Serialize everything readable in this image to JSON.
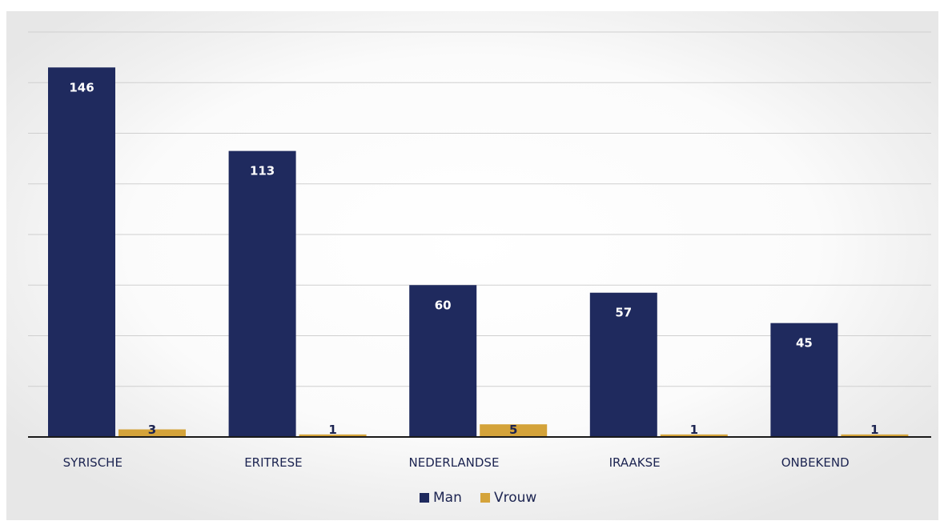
{
  "chart_data": {
    "type": "bar",
    "categories": [
      "SYRISCHE",
      "ERITRESE",
      "NEDERLANDSE",
      "IRAAKSE",
      "ONBEKEND"
    ],
    "series": [
      {
        "name": "Man",
        "values": [
          146,
          113,
          60,
          57,
          45
        ],
        "color": "#1f2a5e"
      },
      {
        "name": "Vrouw",
        "values": [
          3,
          1,
          5,
          1,
          1
        ],
        "color": "#d4a33a"
      }
    ],
    "ylim": [
      0,
      160
    ],
    "grid": true,
    "legend": "bottom",
    "title": "",
    "xlabel": "",
    "ylabel": ""
  }
}
